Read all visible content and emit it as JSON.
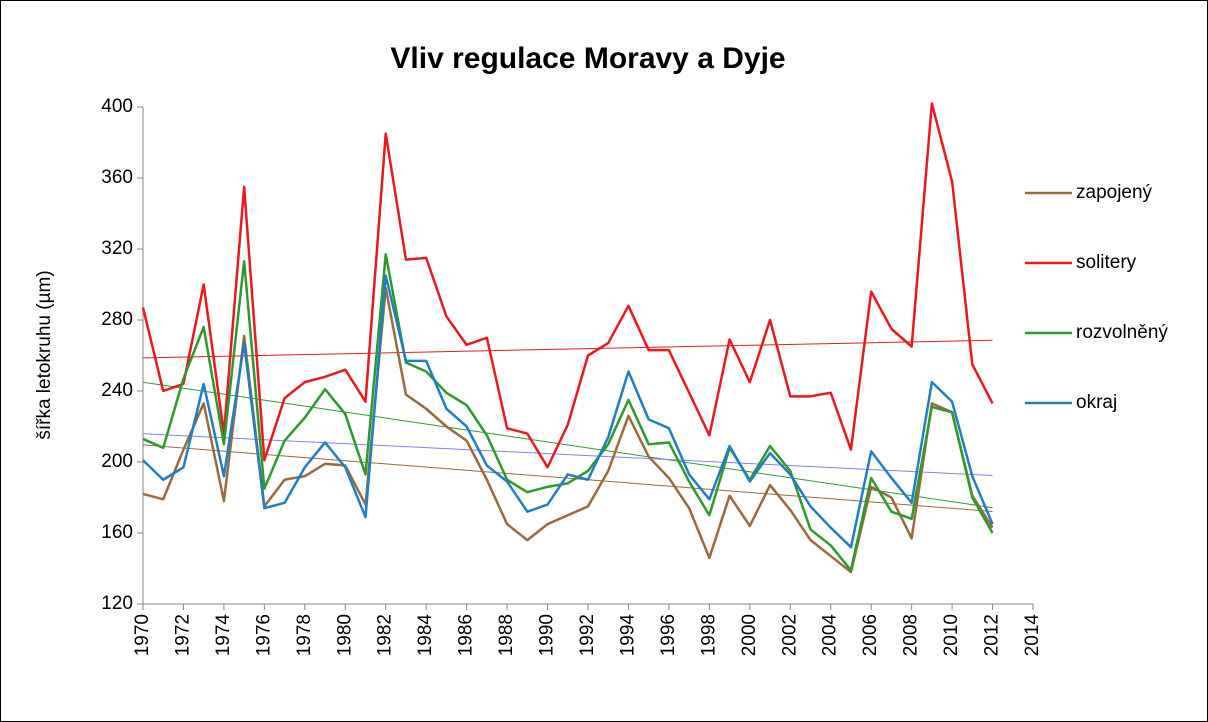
{
  "chart_data": {
    "type": "line",
    "title": "Vliv regulace Moravy a Dyje",
    "y_label": "šířka letokruhu (µm)",
    "x": [
      1970,
      1971,
      1972,
      1973,
      1974,
      1975,
      1976,
      1977,
      1978,
      1979,
      1980,
      1981,
      1982,
      1983,
      1984,
      1985,
      1986,
      1987,
      1988,
      1989,
      1990,
      1991,
      1992,
      1993,
      1994,
      1995,
      1996,
      1997,
      1998,
      1999,
      2000,
      2001,
      2002,
      2003,
      2004,
      2005,
      2006,
      2007,
      2008,
      2009,
      2010,
      2011,
      2012
    ],
    "series": [
      {
        "name": "zapojený",
        "color": "#9b6a3c",
        "trend_color": "#9b6a3c",
        "values": [
          182,
          179,
          207,
          233,
          178,
          271,
          175,
          190,
          192,
          199,
          198,
          176,
          298,
          238,
          230,
          220,
          212,
          190,
          165,
          156,
          165,
          170,
          175,
          195,
          226,
          203,
          191,
          174,
          146,
          181,
          164,
          187,
          173,
          156,
          147,
          138,
          186,
          180,
          157,
          233,
          228,
          181,
          163
        ]
      },
      {
        "name": "solitery",
        "color": "#e8191f",
        "trend_color": "#e8191f",
        "values": [
          287,
          240,
          244,
          300,
          216,
          355,
          201,
          236,
          245,
          248,
          252,
          234,
          385,
          314,
          315,
          282,
          266,
          270,
          219,
          216,
          197,
          221,
          260,
          267,
          288,
          263,
          263,
          239,
          215,
          269,
          245,
          280,
          237,
          237,
          239,
          207,
          296,
          275,
          265,
          402,
          358,
          255,
          233
        ]
      },
      {
        "name": "rozvolněný",
        "color": "#2e9a2e",
        "trend_color": "#2e9a2e",
        "values": [
          213,
          208,
          247,
          276,
          210,
          313,
          185,
          212,
          225,
          241,
          227,
          193,
          317,
          256,
          251,
          239,
          232,
          215,
          190,
          183,
          186,
          188,
          195,
          210,
          235,
          210,
          211,
          189,
          170,
          208,
          190,
          209,
          195,
          162,
          153,
          139,
          191,
          172,
          168,
          231,
          228,
          180,
          160
        ]
      },
      {
        "name": "okraj",
        "color": "#1f7fc0",
        "trend_color": "#8080ff",
        "values": [
          201,
          190,
          197,
          244,
          192,
          267,
          174,
          177,
          197,
          211,
          197,
          169,
          305,
          257,
          257,
          230,
          220,
          198,
          189,
          172,
          176,
          193,
          190,
          214,
          251,
          224,
          219,
          193,
          179,
          209,
          189,
          205,
          193,
          175,
          163,
          152,
          206,
          191,
          177,
          245,
          234,
          192,
          165
        ]
      }
    ],
    "trendline": true,
    "xlim": [
      1970,
      2014
    ],
    "xticks": [
      1970,
      1972,
      1974,
      1976,
      1978,
      1980,
      1982,
      1984,
      1986,
      1988,
      1990,
      1992,
      1994,
      1996,
      1998,
      2000,
      2002,
      2004,
      2006,
      2008,
      2010,
      2012,
      2014
    ],
    "ylim": [
      120,
      400
    ],
    "yticks": [
      120,
      160,
      200,
      240,
      280,
      320,
      360,
      400
    ],
    "grid": false,
    "legend": "right"
  }
}
